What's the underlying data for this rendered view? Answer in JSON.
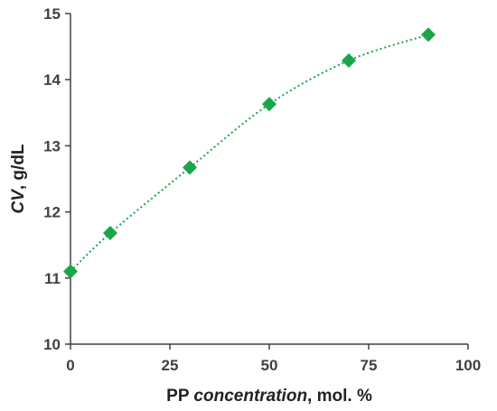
{
  "chart_data": {
    "type": "scatter",
    "title": "",
    "xlabel_parts": [
      {
        "text": "PP ",
        "italic": false
      },
      {
        "text": "concentration",
        "italic": true
      },
      {
        "text": ", mol. %",
        "italic": false
      }
    ],
    "ylabel_parts": [
      {
        "text": "CV",
        "italic": true
      },
      {
        "text": ", g/dL",
        "italic": false
      }
    ],
    "xlim": [
      0,
      100
    ],
    "ylim": [
      10,
      15
    ],
    "x_ticks": [
      0,
      25,
      50,
      75,
      100
    ],
    "y_ticks": [
      10,
      11,
      12,
      13,
      14,
      15
    ],
    "grid": false,
    "legend": "none",
    "series": [
      {
        "marker": "diamond",
        "color": "#1aa54a",
        "trendline": "polynomial (dotted)",
        "x": [
          0,
          10,
          30,
          50,
          70,
          90
        ],
        "y": [
          11.1,
          11.68,
          12.67,
          13.63,
          14.29,
          14.68
        ]
      }
    ]
  }
}
